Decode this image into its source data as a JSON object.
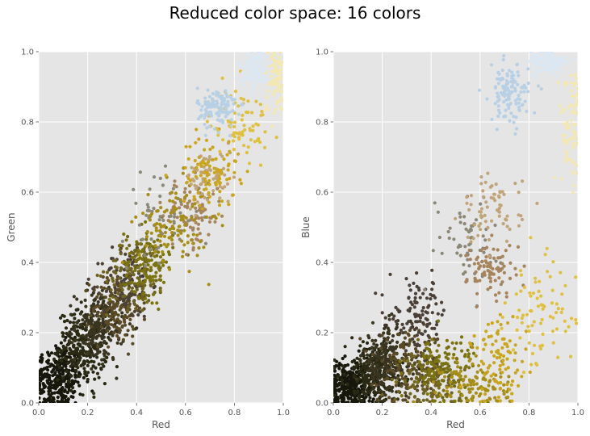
{
  "suptitle": "Reduced color space: 16 colors",
  "chart_data": [
    {
      "type": "scatter",
      "title": "",
      "xlabel": "Red",
      "ylabel": "Green",
      "xlim": [
        0,
        1
      ],
      "ylim": [
        0,
        1
      ],
      "xticks": [
        "0.0",
        "0.2",
        "0.4",
        "0.6",
        "0.8",
        "1.0"
      ],
      "yticks": [
        "0.0",
        "0.2",
        "0.4",
        "0.6",
        "0.8",
        "1.0"
      ],
      "grid": true,
      "style": "ggplot",
      "clusters": [
        {
          "color": "#17170c",
          "center": [
            0.08,
            0.07
          ],
          "spread": [
            0.05,
            0.05
          ],
          "count": 320
        },
        {
          "color": "#2a2a14",
          "center": [
            0.18,
            0.16
          ],
          "spread": [
            0.05,
            0.05
          ],
          "count": 260
        },
        {
          "color": "#3a3520",
          "center": [
            0.25,
            0.22
          ],
          "spread": [
            0.05,
            0.05
          ],
          "count": 200
        },
        {
          "color": "#5a4a26",
          "center": [
            0.32,
            0.27
          ],
          "spread": [
            0.05,
            0.05
          ],
          "count": 160
        },
        {
          "color": "#4a4038",
          "center": [
            0.36,
            0.34
          ],
          "spread": [
            0.05,
            0.05
          ],
          "count": 110
        },
        {
          "color": "#6e6320",
          "center": [
            0.4,
            0.37
          ],
          "spread": [
            0.06,
            0.05
          ],
          "count": 130
        },
        {
          "color": "#7b7310",
          "center": [
            0.45,
            0.4
          ],
          "spread": [
            0.05,
            0.05
          ],
          "count": 120
        },
        {
          "color": "#8c8877",
          "center": [
            0.5,
            0.53
          ],
          "spread": [
            0.08,
            0.06
          ],
          "count": 60
        },
        {
          "color": "#a6845e",
          "center": [
            0.63,
            0.54
          ],
          "spread": [
            0.06,
            0.05
          ],
          "count": 90
        },
        {
          "color": "#a78e18",
          "center": [
            0.55,
            0.51
          ],
          "spread": [
            0.07,
            0.06
          ],
          "count": 110
        },
        {
          "color": "#c0a57a",
          "center": [
            0.7,
            0.64
          ],
          "spread": [
            0.05,
            0.04
          ],
          "count": 70
        },
        {
          "color": "#c9a61e",
          "center": [
            0.7,
            0.66
          ],
          "spread": [
            0.06,
            0.05
          ],
          "count": 90
        },
        {
          "color": "#dfc040",
          "center": [
            0.82,
            0.8
          ],
          "spread": [
            0.06,
            0.05
          ],
          "count": 80
        },
        {
          "color": "#b7d0e6",
          "center": [
            0.73,
            0.84
          ],
          "spread": [
            0.04,
            0.03
          ],
          "count": 120
        },
        {
          "color": "#dbe8f3",
          "center": [
            0.9,
            0.95
          ],
          "spread": [
            0.04,
            0.03
          ],
          "count": 110
        },
        {
          "color": "#f3e8b4",
          "center": [
            0.97,
            0.92
          ],
          "spread": [
            0.025,
            0.05
          ],
          "count": 80
        }
      ]
    },
    {
      "type": "scatter",
      "title": "",
      "xlabel": "Red",
      "ylabel": "Blue",
      "xlim": [
        0,
        1
      ],
      "ylim": [
        0,
        1
      ],
      "xticks": [
        "0.0",
        "0.2",
        "0.4",
        "0.6",
        "0.8",
        "1.0"
      ],
      "yticks": [
        "0.0",
        "0.2",
        "0.4",
        "0.6",
        "0.8",
        "1.0"
      ],
      "grid": true,
      "style": "ggplot",
      "clusters": [
        {
          "color": "#17170c",
          "center": [
            0.07,
            0.05
          ],
          "spread": [
            0.05,
            0.035
          ],
          "count": 320
        },
        {
          "color": "#2a2a14",
          "center": [
            0.17,
            0.09
          ],
          "spread": [
            0.06,
            0.04
          ],
          "count": 260
        },
        {
          "color": "#3a3520",
          "center": [
            0.22,
            0.12
          ],
          "spread": [
            0.05,
            0.05
          ],
          "count": 200
        },
        {
          "color": "#5a4a26",
          "center": [
            0.32,
            0.1
          ],
          "spread": [
            0.07,
            0.05
          ],
          "count": 160
        },
        {
          "color": "#4a4038",
          "center": [
            0.35,
            0.25
          ],
          "spread": [
            0.06,
            0.05
          ],
          "count": 110
        },
        {
          "color": "#6e6320",
          "center": [
            0.4,
            0.06
          ],
          "spread": [
            0.06,
            0.04
          ],
          "count": 130
        },
        {
          "color": "#7b7310",
          "center": [
            0.45,
            0.1
          ],
          "spread": [
            0.07,
            0.05
          ],
          "count": 120
        },
        {
          "color": "#8c8877",
          "center": [
            0.54,
            0.47
          ],
          "spread": [
            0.07,
            0.06
          ],
          "count": 60
        },
        {
          "color": "#a6845e",
          "center": [
            0.65,
            0.38
          ],
          "spread": [
            0.05,
            0.04
          ],
          "count": 90
        },
        {
          "color": "#a78e18",
          "center": [
            0.58,
            0.05
          ],
          "spread": [
            0.07,
            0.04
          ],
          "count": 110
        },
        {
          "color": "#c0a57a",
          "center": [
            0.65,
            0.55
          ],
          "spread": [
            0.06,
            0.05
          ],
          "count": 70
        },
        {
          "color": "#c9a61e",
          "center": [
            0.68,
            0.12
          ],
          "spread": [
            0.06,
            0.06
          ],
          "count": 90
        },
        {
          "color": "#dfc040",
          "center": [
            0.85,
            0.25
          ],
          "spread": [
            0.07,
            0.08
          ],
          "count": 80
        },
        {
          "color": "#b7d0e6",
          "center": [
            0.72,
            0.88
          ],
          "spread": [
            0.04,
            0.04
          ],
          "count": 120
        },
        {
          "color": "#dbe8f3",
          "center": [
            0.88,
            0.97
          ],
          "spread": [
            0.04,
            0.02
          ],
          "count": 110
        },
        {
          "color": "#f3e8b4",
          "center": [
            0.97,
            0.8
          ],
          "spread": [
            0.025,
            0.08
          ],
          "count": 80
        }
      ]
    }
  ]
}
